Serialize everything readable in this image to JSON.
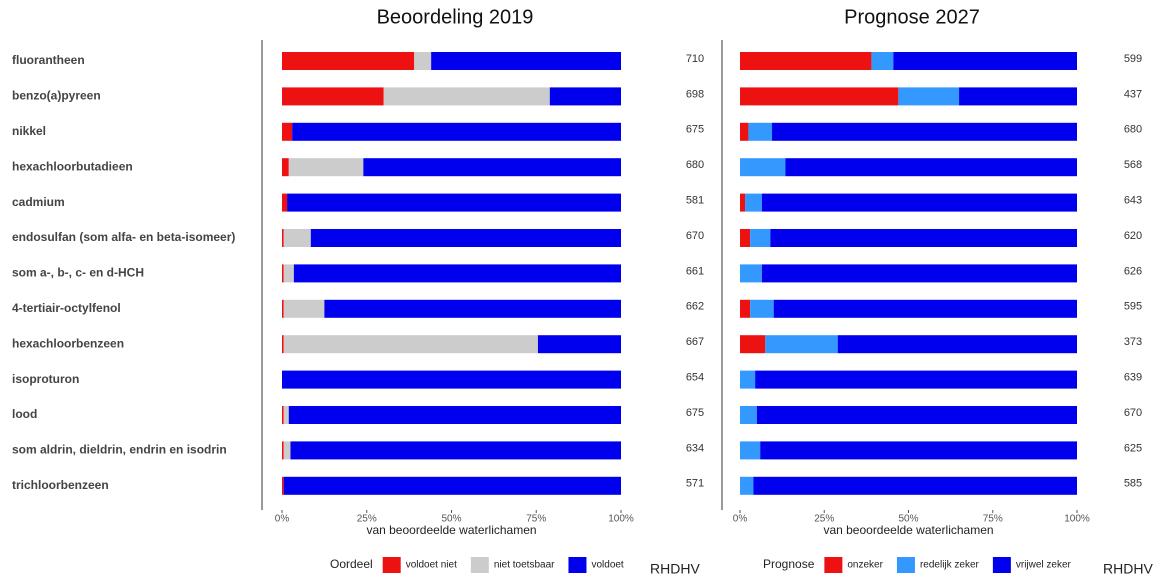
{
  "chart_data": [
    {
      "type": "bar",
      "orientation": "horizontal",
      "stacked": true,
      "title": "Beoordeling 2019",
      "xlabel": "van beoordeelde waterlichamen",
      "legend_title": "Oordeel",
      "watermark": "RHDHV",
      "categories": [
        "fluorantheen",
        "benzo(a)pyreen",
        "nikkel",
        "hexachloorbutadieen",
        "cadmium",
        "endosulfan (som alfa- en beta-isomeer)",
        "som a-, b-, c- en d-HCH",
        "4-tertiair-octylfenol",
        "hexachloorbenzeen",
        "isoproturon",
        "lood",
        "som aldrin, dieldrin, endrin en isodrin",
        "trichloorbenzeen"
      ],
      "counts": [
        710,
        698,
        675,
        680,
        581,
        670,
        661,
        662,
        667,
        654,
        675,
        634,
        571
      ],
      "series": [
        {
          "name": "voldoet niet",
          "color": "#ee1111",
          "values": [
            39,
            30,
            3,
            2,
            1.5,
            0.5,
            0.5,
            0.5,
            0.5,
            0,
            0.5,
            0.5,
            0.5
          ]
        },
        {
          "name": "niet toetsbaar",
          "color": "#cccccc",
          "values": [
            5,
            49,
            0,
            22,
            0,
            8,
            3,
            12,
            75,
            0,
            1.5,
            2,
            0
          ]
        },
        {
          "name": "voldoet",
          "color": "#0000ee",
          "values": [
            56,
            21,
            97,
            76,
            98.5,
            91.5,
            96.5,
            87.5,
            24.5,
            100,
            98,
            97.5,
            99.5
          ]
        }
      ],
      "xlim": [
        0,
        100
      ],
      "xticks": [
        {
          "value": 0,
          "label": "0%"
        },
        {
          "value": 25,
          "label": "25%"
        },
        {
          "value": 50,
          "label": "50%"
        },
        {
          "value": 75,
          "label": "75%"
        },
        {
          "value": 100,
          "label": "100%"
        }
      ]
    },
    {
      "type": "bar",
      "orientation": "horizontal",
      "stacked": true,
      "title": "Prognose 2027",
      "xlabel": "van beoordeelde waterlichamen",
      "legend_title": "Prognose",
      "watermark": "RHDHV",
      "counts": [
        599,
        437,
        680,
        568,
        643,
        620,
        626,
        595,
        373,
        639,
        670,
        625,
        585
      ],
      "series": [
        {
          "name": "onzeker",
          "color": "#ee1111",
          "values": [
            39,
            47,
            2.5,
            0,
            1.5,
            3,
            0,
            3,
            7.5,
            0,
            0,
            0,
            0
          ]
        },
        {
          "name": "redelijk zeker",
          "color": "#3399ff",
          "values": [
            6.5,
            18,
            7,
            13.5,
            5,
            6,
            6.5,
            7,
            21.5,
            4.5,
            5,
            6,
            4
          ]
        },
        {
          "name": "vrijwel zeker",
          "color": "#0000ee",
          "values": [
            54.5,
            35,
            90.5,
            86.5,
            93.5,
            91,
            93.5,
            90,
            71,
            95.5,
            95,
            94,
            96
          ]
        }
      ],
      "xlim": [
        0,
        100
      ],
      "xticks": [
        {
          "value": 0,
          "label": "0%"
        },
        {
          "value": 25,
          "label": "25%"
        },
        {
          "value": 50,
          "label": "50%"
        },
        {
          "value": 75,
          "label": "75%"
        },
        {
          "value": 100,
          "label": "100%"
        }
      ]
    }
  ]
}
